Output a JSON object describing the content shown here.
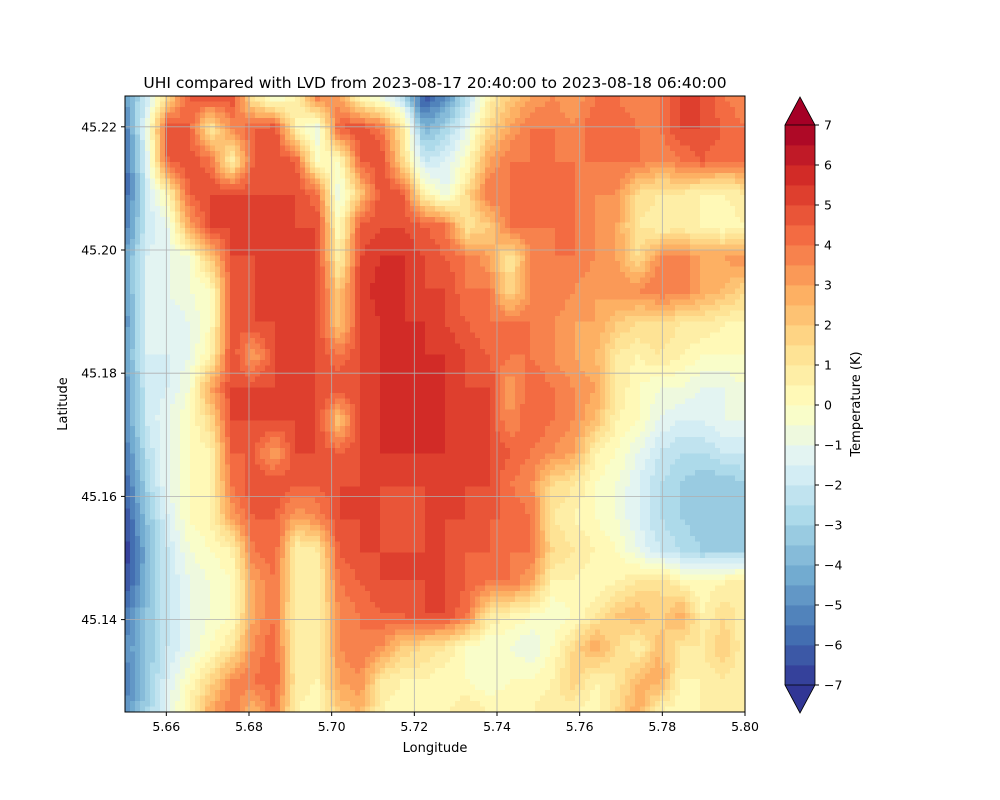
{
  "chart_data": {
    "type": "heatmap",
    "title": "UHI compared with LVD from 2023-08-17 20:40:00 to 2023-08-18 06:40:00",
    "xlabel": "Longitude",
    "ylabel": "Latitude",
    "xlim": [
      5.65,
      5.8
    ],
    "ylim": [
      45.125,
      45.225
    ],
    "x_ticks": [
      5.66,
      5.68,
      5.7,
      5.72,
      5.74,
      5.76,
      5.78,
      5.8
    ],
    "x_tick_labels": [
      "5.66",
      "5.68",
      "5.70",
      "5.72",
      "5.74",
      "5.76",
      "5.78",
      "5.80"
    ],
    "y_ticks": [
      45.14,
      45.16,
      45.18,
      45.2,
      45.22
    ],
    "y_tick_labels": [
      "45.14",
      "45.16",
      "45.18",
      "45.20",
      "45.22"
    ],
    "grid": true,
    "colorbar": {
      "label": "Temperature (K)",
      "range": [
        -7,
        7
      ],
      "extend": "both",
      "level_step": 0.5,
      "ticks": [
        -7,
        -6,
        -5,
        -4,
        -3,
        -2,
        -1,
        0,
        1,
        2,
        3,
        4,
        5,
        6,
        7
      ],
      "tick_labels": [
        "−7",
        "−6",
        "−5",
        "−4",
        "−3",
        "−2",
        "−1",
        "0",
        "1",
        "2",
        "3",
        "4",
        "5",
        "6",
        "7"
      ],
      "colormap": "RdYlBu_r",
      "colors": [
        "#313695",
        "#4575b4",
        "#74add1",
        "#abd9e9",
        "#e0f3f8",
        "#ffffbf",
        "#fee090",
        "#fdae61",
        "#f46d43",
        "#d73027",
        "#a50026"
      ]
    },
    "grid_shape": [
      20,
      30
    ],
    "z": [
      [
        -4.5,
        -2.0,
        1.5,
        4.5,
        5.0,
        5.0,
        1.0,
        -1.0,
        0.5,
        4.0,
        3.0,
        0.0,
        -1.0,
        -2.5,
        -6.5,
        -5.0,
        -2.5,
        0.5,
        2.0,
        3.0,
        3.5,
        3.0,
        4.0,
        4.0,
        3.5,
        4.0,
        5.0,
        5.0,
        4.0,
        3.5
      ],
      [
        -5.5,
        -1.0,
        5.0,
        4.5,
        1.0,
        3.5,
        4.5,
        5.0,
        0.5,
        -1.0,
        4.5,
        5.0,
        4.0,
        1.0,
        -4.0,
        -3.0,
        -1.0,
        1.5,
        3.0,
        4.0,
        4.0,
        3.5,
        4.5,
        4.5,
        4.0,
        4.0,
        5.0,
        5.0,
        4.5,
        4.0
      ],
      [
        -6.0,
        -1.5,
        4.5,
        5.0,
        4.0,
        0.5,
        4.5,
        5.0,
        4.5,
        0.0,
        0.0,
        4.5,
        5.0,
        1.5,
        -2.0,
        -1.5,
        0.0,
        3.0,
        4.0,
        4.0,
        4.0,
        4.0,
        4.0,
        4.0,
        4.0,
        3.5,
        4.0,
        4.5,
        4.0,
        4.0
      ],
      [
        -6.0,
        -2.0,
        0.5,
        4.5,
        5.0,
        5.0,
        5.0,
        5.0,
        5.0,
        4.0,
        -1.0,
        2.0,
        5.0,
        4.5,
        0.5,
        -1.0,
        1.5,
        4.0,
        4.0,
        4.0,
        4.0,
        4.0,
        3.5,
        3.5,
        1.5,
        1.0,
        1.0,
        0.5,
        0.5,
        1.0
      ],
      [
        -5.5,
        -2.0,
        -1.0,
        3.0,
        5.0,
        5.0,
        5.0,
        5.0,
        5.0,
        5.0,
        0.0,
        4.5,
        5.0,
        5.0,
        4.5,
        4.0,
        1.0,
        2.0,
        4.0,
        4.0,
        4.0,
        4.0,
        3.5,
        3.0,
        1.0,
        0.5,
        0.5,
        0.5,
        0.0,
        0.5
      ],
      [
        -4.5,
        -1.5,
        -1.0,
        -0.5,
        2.0,
        5.0,
        5.0,
        5.0,
        5.0,
        5.0,
        0.5,
        5.0,
        5.5,
        5.5,
        5.0,
        4.5,
        4.0,
        3.0,
        1.0,
        3.5,
        4.0,
        4.0,
        3.5,
        3.0,
        1.5,
        3.5,
        4.0,
        3.0,
        3.0,
        3.5
      ],
      [
        -4.5,
        -1.5,
        -1.0,
        -0.5,
        0.0,
        4.5,
        5.0,
        5.0,
        5.0,
        5.0,
        2.0,
        5.0,
        6.0,
        5.5,
        5.0,
        5.0,
        4.0,
        4.0,
        1.5,
        3.5,
        4.0,
        3.5,
        3.0,
        3.5,
        3.5,
        4.0,
        4.0,
        3.0,
        2.5,
        1.5
      ],
      [
        -5.0,
        -1.5,
        -1.5,
        -1.0,
        0.0,
        4.5,
        5.0,
        5.0,
        5.0,
        5.0,
        2.0,
        5.0,
        5.5,
        5.5,
        5.5,
        5.0,
        4.5,
        4.0,
        4.0,
        4.0,
        3.5,
        3.0,
        3.0,
        2.0,
        1.5,
        1.5,
        1.0,
        1.0,
        0.5,
        0.5
      ],
      [
        -4.5,
        -1.5,
        -1.5,
        -1.0,
        0.5,
        5.0,
        3.0,
        5.0,
        5.0,
        5.0,
        4.0,
        5.0,
        5.5,
        5.5,
        5.5,
        5.5,
        5.0,
        4.5,
        4.0,
        4.0,
        3.5,
        3.0,
        2.5,
        1.0,
        0.5,
        1.0,
        0.5,
        0.0,
        0.0,
        0.0
      ],
      [
        -5.0,
        -2.0,
        -1.5,
        -0.5,
        3.0,
        5.0,
        5.0,
        5.0,
        5.0,
        5.0,
        5.0,
        5.0,
        5.5,
        5.5,
        5.5,
        5.5,
        5.0,
        5.0,
        3.0,
        4.5,
        4.0,
        3.5,
        3.0,
        1.0,
        0.0,
        -0.5,
        -0.5,
        -1.0,
        -1.0,
        -0.5
      ],
      [
        -5.0,
        -2.0,
        -1.0,
        0.0,
        1.5,
        5.0,
        5.0,
        5.0,
        5.0,
        5.0,
        2.0,
        5.0,
        5.5,
        5.5,
        5.5,
        5.5,
        5.0,
        5.0,
        3.5,
        4.5,
        4.0,
        3.5,
        2.5,
        0.5,
        0.0,
        -1.0,
        -1.5,
        -1.5,
        -1.0,
        -1.0
      ],
      [
        -5.5,
        -2.5,
        -1.0,
        0.0,
        0.5,
        4.5,
        4.5,
        3.0,
        5.0,
        5.0,
        4.5,
        5.0,
        5.5,
        5.5,
        5.5,
        5.5,
        5.0,
        5.0,
        4.5,
        4.0,
        3.5,
        3.0,
        0.5,
        0.0,
        -1.0,
        -2.0,
        -2.5,
        -2.5,
        -2.0,
        -2.0
      ],
      [
        -6.0,
        -3.0,
        -1.0,
        0.0,
        0.5,
        4.0,
        5.0,
        5.0,
        4.5,
        4.5,
        5.0,
        5.0,
        5.0,
        5.0,
        5.0,
        5.0,
        5.0,
        5.0,
        4.0,
        3.5,
        1.5,
        1.0,
        0.0,
        -0.5,
        -1.5,
        -2.5,
        -3.0,
        -3.5,
        -3.5,
        -3.0
      ],
      [
        -6.5,
        -3.5,
        -1.5,
        0.0,
        0.5,
        3.0,
        4.5,
        4.5,
        3.0,
        3.5,
        5.0,
        5.0,
        5.0,
        4.5,
        5.0,
        5.0,
        5.0,
        4.5,
        4.5,
        4.0,
        1.0,
        0.5,
        0.0,
        -0.5,
        -1.5,
        -2.5,
        -3.0,
        -3.5,
        -3.5,
        -3.5
      ],
      [
        -7.0,
        -4.0,
        -2.0,
        -0.5,
        0.0,
        0.5,
        4.0,
        4.5,
        0.5,
        1.0,
        4.5,
        5.0,
        5.0,
        5.0,
        5.0,
        5.0,
        4.5,
        4.5,
        4.0,
        4.0,
        1.5,
        1.0,
        0.5,
        0.0,
        -1.0,
        -2.0,
        -2.5,
        -3.0,
        -3.0,
        -3.0
      ],
      [
        -6.5,
        -4.0,
        -2.0,
        -1.0,
        -0.5,
        0.0,
        3.0,
        4.0,
        1.0,
        0.5,
        4.0,
        4.5,
        5.0,
        5.0,
        5.0,
        5.0,
        4.5,
        4.0,
        4.0,
        3.0,
        0.5,
        0.5,
        0.0,
        0.5,
        1.0,
        1.5,
        0.5,
        0.0,
        0.5,
        1.0
      ],
      [
        -5.5,
        -3.5,
        -2.0,
        -1.0,
        -0.5,
        0.0,
        3.0,
        4.0,
        0.5,
        0.5,
        3.5,
        4.0,
        4.5,
        4.5,
        5.0,
        5.0,
        4.0,
        1.0,
        0.5,
        0.0,
        -0.5,
        0.0,
        1.0,
        2.0,
        2.5,
        1.5,
        3.0,
        0.5,
        1.5,
        0.5
      ],
      [
        -5.0,
        -3.5,
        -2.0,
        -1.0,
        0.0,
        1.0,
        3.5,
        4.5,
        0.5,
        0.5,
        3.5,
        4.0,
        3.5,
        2.0,
        1.5,
        1.0,
        0.0,
        -0.5,
        -0.5,
        -1.0,
        0.0,
        1.5,
        3.0,
        1.5,
        0.5,
        2.5,
        1.0,
        1.0,
        2.0,
        0.5
      ],
      [
        -5.5,
        -3.5,
        -1.5,
        0.0,
        1.5,
        3.5,
        4.0,
        4.5,
        1.0,
        0.5,
        3.0,
        3.5,
        1.0,
        0.5,
        0.5,
        0.0,
        0.0,
        -0.5,
        0.0,
        0.0,
        0.5,
        2.0,
        0.5,
        1.0,
        2.5,
        3.0,
        0.5,
        0.5,
        1.0,
        0.5
      ],
      [
        -5.0,
        -3.0,
        -1.0,
        0.5,
        3.0,
        4.0,
        2.5,
        4.0,
        0.5,
        0.0,
        2.0,
        2.5,
        0.5,
        0.0,
        0.0,
        0.5,
        1.0,
        0.5,
        0.5,
        0.5,
        1.0,
        0.5,
        0.0,
        1.5,
        3.0,
        0.5,
        0.0,
        0.5,
        0.5,
        0.5
      ]
    ]
  }
}
